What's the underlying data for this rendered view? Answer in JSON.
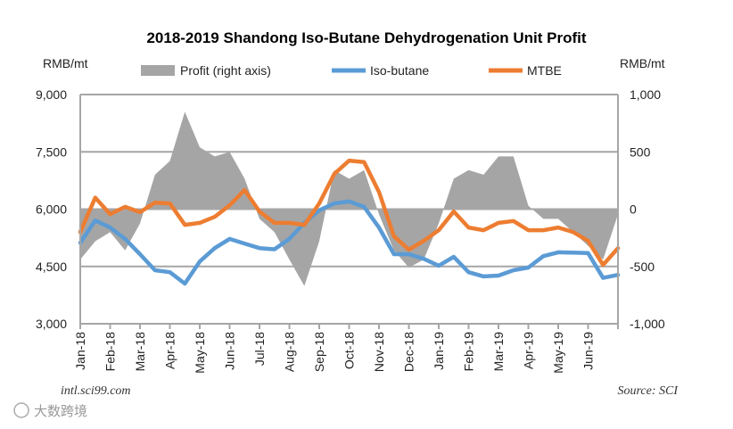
{
  "chart_data": {
    "type": "line",
    "title": "2018-2019 Shandong Iso-Butane Dehydrogenation Unit Profit",
    "ylabel_left": "RMB/mt",
    "ylabel_right": "RMB/mt",
    "ylim_left": [
      3000,
      9000
    ],
    "ylim_right": [
      -1000,
      1000
    ],
    "yticks_left": [
      "9,000",
      "7,500",
      "6,000",
      "4,500",
      "3,000"
    ],
    "yticks_right": [
      "1,000",
      "500",
      "0",
      "-500",
      "-1,000"
    ],
    "xticks": [
      "Jan-18",
      "Feb-18",
      "Mar-18",
      "Apr-18",
      "May-18",
      "Jun-18",
      "Jul-18",
      "Aug-18",
      "Sep-18",
      "Oct-18",
      "Nov-18",
      "Dec-18",
      "Jan-19",
      "Feb-19",
      "Mar-19",
      "Apr-19",
      "May-19",
      "Jun-19"
    ],
    "x_months_from_jan18": [
      0,
      0.5,
      1,
      1.5,
      2,
      2.5,
      3,
      3.5,
      4,
      4.5,
      5,
      5.5,
      6,
      6.5,
      7,
      7.5,
      8,
      8.5,
      9,
      9.5,
      10,
      10.5,
      11,
      11.5,
      12,
      12.5,
      13,
      13.5,
      14,
      14.5,
      15,
      15.5,
      16,
      16.5,
      17,
      17.5,
      18
    ],
    "grid": true,
    "legend_position": "top",
    "series": [
      {
        "name": "Profit (right axis)",
        "type": "area",
        "axis": "right",
        "color": "#a5a5a5",
        "values": [
          -440,
          -280,
          -200,
          -360,
          -125,
          300,
          420,
          850,
          540,
          460,
          500,
          265,
          -85,
          -200,
          -440,
          -670,
          -280,
          340,
          265,
          340,
          -45,
          -360,
          -510,
          -440,
          -125,
          265,
          340,
          300,
          460,
          460,
          30,
          -85,
          -85,
          -200,
          -320,
          -440,
          -45
        ]
      },
      {
        "name": "Iso-butane",
        "type": "line",
        "axis": "left",
        "color": "#5b9bd5",
        "values": [
          5120,
          5700,
          5520,
          5220,
          4820,
          4400,
          4350,
          4050,
          4630,
          4980,
          5220,
          5100,
          4980,
          4950,
          5220,
          5640,
          5970,
          6150,
          6200,
          6060,
          5520,
          4820,
          4820,
          4700,
          4520,
          4750,
          4350,
          4240,
          4260,
          4400,
          4470,
          4770,
          4870,
          4860,
          4850,
          4200,
          4280
        ]
      },
      {
        "name": "MTBE",
        "type": "line",
        "axis": "left",
        "color": "#ed7d31",
        "values": [
          5400,
          6300,
          5870,
          6060,
          5920,
          6170,
          6150,
          5590,
          5640,
          5800,
          6100,
          6500,
          5940,
          5640,
          5640,
          5590,
          6150,
          6920,
          7270,
          7230,
          6450,
          5290,
          4940,
          5170,
          5450,
          5940,
          5520,
          5450,
          5640,
          5690,
          5450,
          5450,
          5520,
          5400,
          5170,
          4540,
          4980
        ]
      }
    ],
    "footer_left": "intl.sci99.com",
    "footer_right": "Source: SCI",
    "watermark": "大数跨境"
  }
}
